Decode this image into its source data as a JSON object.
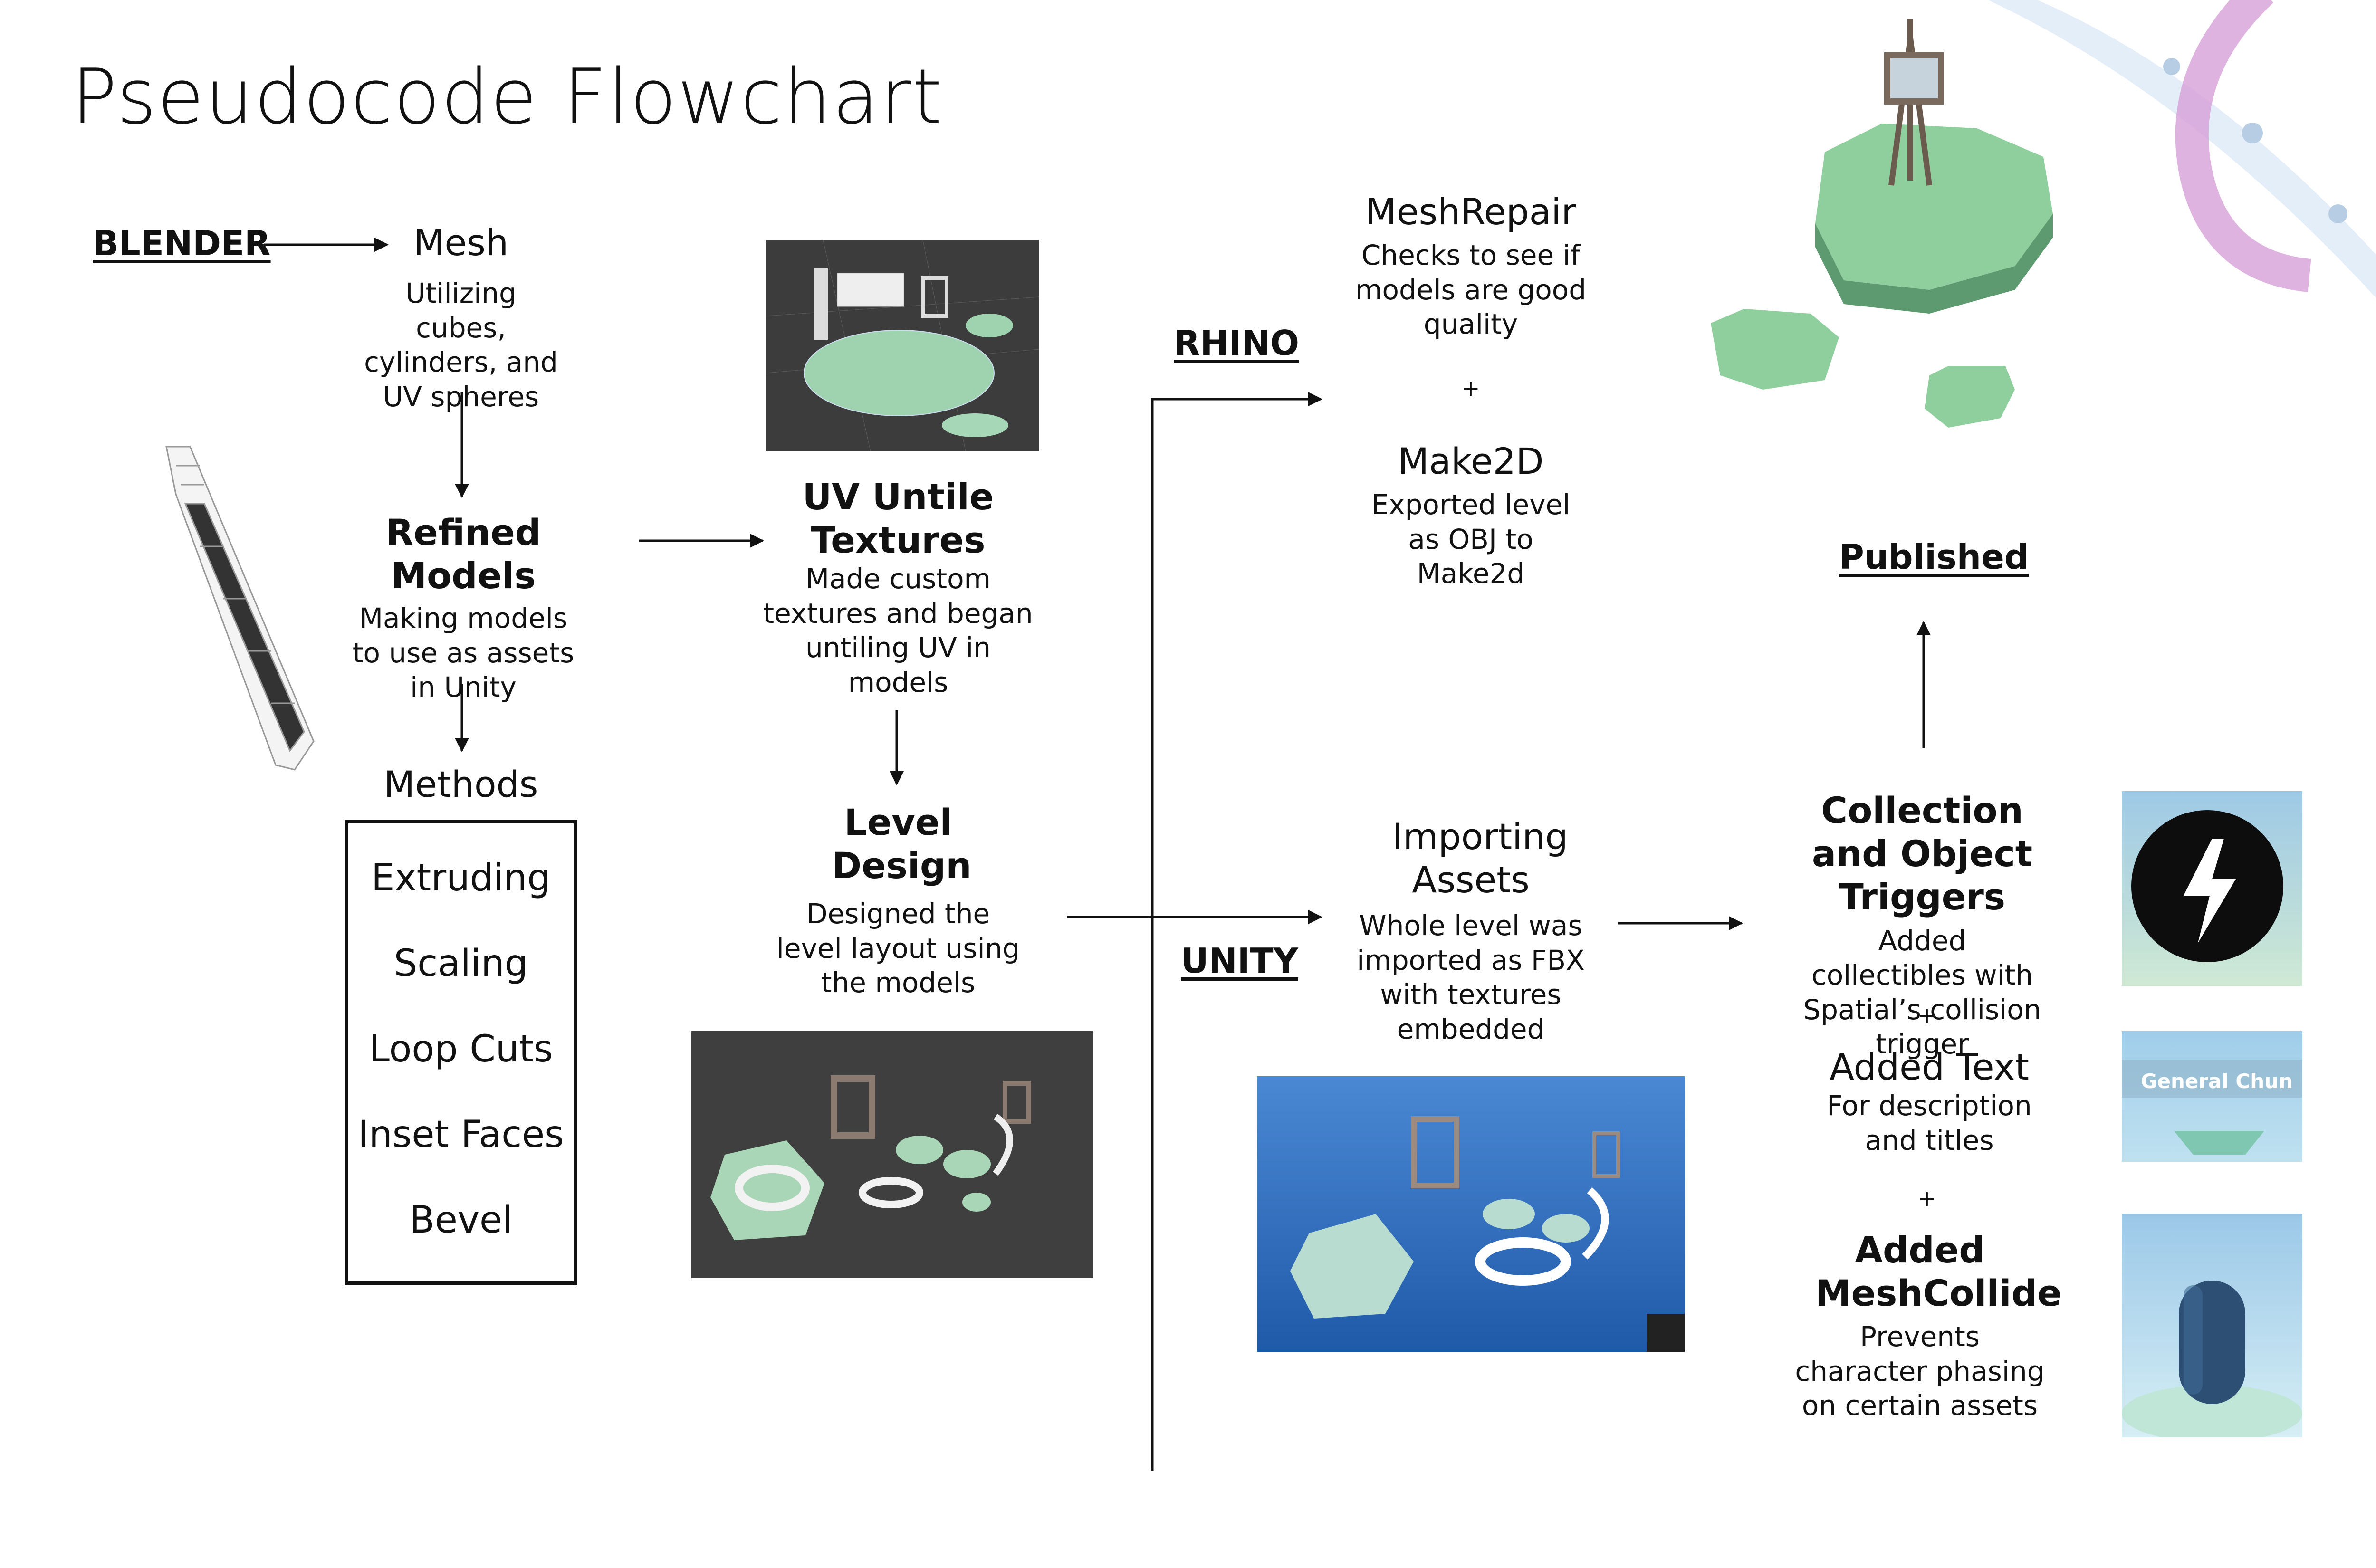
{
  "title": "Pseudocode Flowchart",
  "labels": {
    "blender": "BLENDER",
    "rhino": "RHINO",
    "unity": "UNITY",
    "published": "Published"
  },
  "nodes": {
    "mesh": {
      "title": "Mesh",
      "desc": "Utilizing cubes, cylinders, and UV spheres"
    },
    "refined": {
      "title": "Refined Models",
      "desc": "Making models to use as assets in Unity"
    },
    "methods": {
      "title": "Methods",
      "items": [
        "Extruding",
        "Scaling",
        "Loop Cuts",
        "Inset Faces",
        "Bevel"
      ]
    },
    "uv": {
      "title": "UV Untile Textures",
      "desc": "Made custom textures and began untiling UV in models"
    },
    "level": {
      "title": "Level Design",
      "desc": "Designed the level layout using the models"
    },
    "meshrepair": {
      "title": "MeshRepair",
      "desc": "Checks to see if models are good quality"
    },
    "make2d": {
      "title": "Make2D",
      "desc": "Exported level as OBJ to Make2d"
    },
    "importing": {
      "title": "Importing Assets",
      "desc": "Whole level was imported as FBX with textures embedded"
    },
    "collection": {
      "title": "Collection and Object Triggers",
      "desc": "Added collectibles with Spatial’s collision trigger"
    },
    "addedtext": {
      "title": "Added Text",
      "desc": "For description and titles"
    },
    "meshcollide": {
      "title": "Added MeshCollide",
      "desc": "Prevents character phasing on certain assets"
    }
  },
  "plus": "+",
  "images": {
    "text_thumb_label": "General Chun"
  },
  "colors": {
    "grass": "#8fcf9e",
    "blender_bg": "#3e3e3e",
    "unity_bg": "#2f6fc4",
    "sky": "#a9d6f0",
    "ribbon_pink": "#d49ad6"
  }
}
